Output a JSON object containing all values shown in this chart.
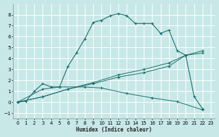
{
  "xlabel": "Humidex (Indice chaleur)",
  "bg_color": "#c8e8e8",
  "line_color": "#1a6b6b",
  "grid_color": "#ffffff",
  "xlim": [
    -0.5,
    23.5
  ],
  "ylim": [
    -1.5,
    9.0
  ],
  "xtick_labels": [
    "0",
    "1",
    "2",
    "3",
    "4",
    "5",
    "6",
    "7",
    "8",
    "9",
    "10",
    "11",
    "12",
    "13",
    "14",
    "15",
    "16",
    "17",
    "18",
    "19",
    "20",
    "21",
    "22",
    "23"
  ],
  "xtick_vals": [
    0,
    1,
    2,
    3,
    4,
    5,
    6,
    7,
    8,
    9,
    10,
    11,
    12,
    13,
    14,
    15,
    16,
    17,
    18,
    19,
    20,
    21,
    22,
    23
  ],
  "ytick_vals": [
    -1,
    0,
    1,
    2,
    3,
    4,
    5,
    6,
    7,
    8
  ],
  "curve1_x": [
    0,
    1,
    2,
    3,
    4,
    5,
    6,
    7,
    8,
    9,
    10,
    11,
    12,
    13,
    14,
    15,
    16,
    17,
    18,
    19,
    20,
    21,
    22
  ],
  "curve1_y": [
    0.0,
    0.1,
    1.0,
    1.7,
    1.4,
    1.4,
    3.3,
    4.5,
    5.8,
    7.3,
    7.5,
    7.9,
    8.1,
    7.9,
    7.2,
    7.2,
    7.2,
    6.3,
    6.6,
    4.7,
    4.3,
    0.5,
    -0.6
  ],
  "curve2_x": [
    0,
    3,
    6,
    9,
    12,
    15,
    18,
    20,
    22
  ],
  "curve2_y": [
    0.0,
    0.5,
    1.2,
    1.8,
    2.5,
    3.0,
    3.6,
    4.3,
    4.7
  ],
  "curve3_x": [
    0,
    3,
    6,
    9,
    12,
    15,
    18,
    20,
    22
  ],
  "curve3_y": [
    0.0,
    0.5,
    1.2,
    1.7,
    2.3,
    2.7,
    3.3,
    4.3,
    4.5
  ],
  "curve4_x": [
    0,
    3,
    5,
    8,
    10,
    13,
    16,
    19,
    22
  ],
  "curve4_y": [
    0.0,
    1.2,
    1.4,
    1.4,
    1.3,
    0.8,
    0.4,
    0.05,
    -0.7
  ]
}
